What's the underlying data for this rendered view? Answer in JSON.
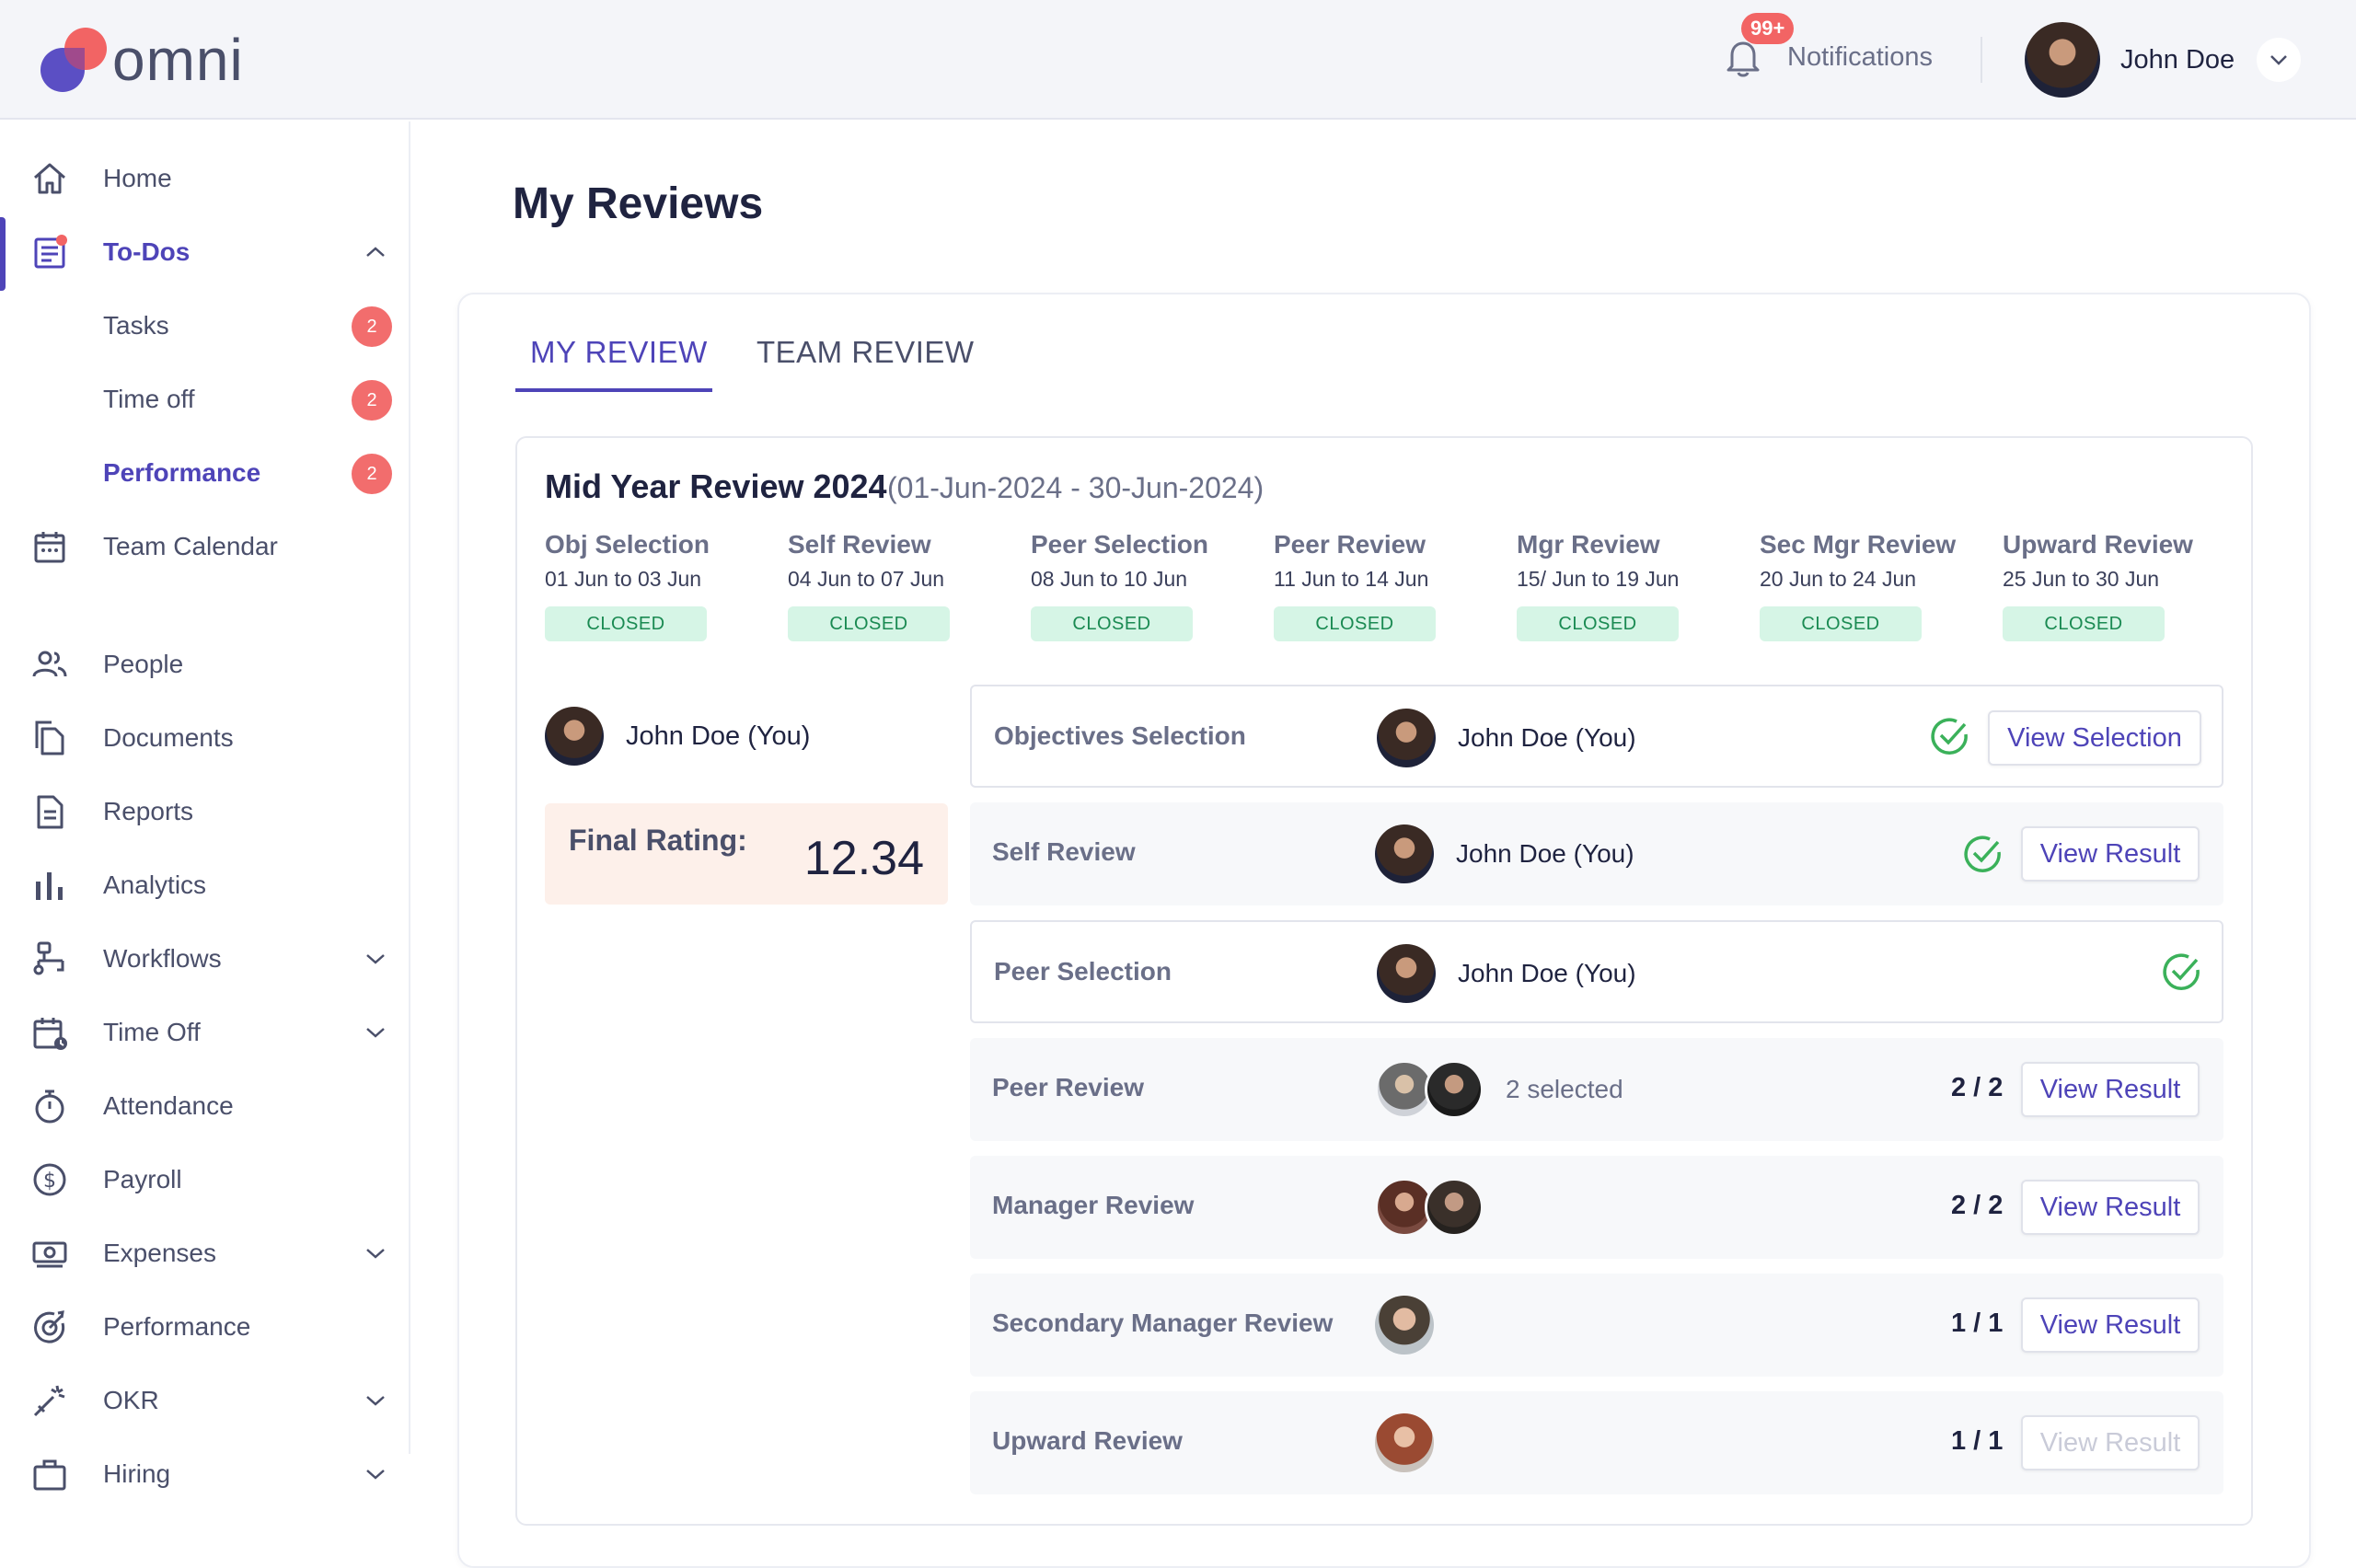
{
  "app": {
    "logo_text": "omni"
  },
  "header": {
    "notifications_badge": "99+",
    "notifications_label": "Notifications",
    "user_name": "John Doe"
  },
  "sidebar": {
    "items": [
      {
        "label": "Home",
        "icon": "home-icon"
      },
      {
        "label": "To-Dos",
        "icon": "todo-list-icon",
        "active": true
      },
      {
        "label": "Tasks",
        "count": "2"
      },
      {
        "label": "Time off",
        "count": "2"
      },
      {
        "label": "Performance",
        "count": "2",
        "active": true
      },
      {
        "label": "Team Calendar",
        "icon": "calendar-icon"
      },
      {
        "label": "People",
        "icon": "people-icon"
      },
      {
        "label": "Documents",
        "icon": "documents-icon"
      },
      {
        "label": "Reports",
        "icon": "report-icon"
      },
      {
        "label": "Analytics",
        "icon": "bar-chart-icon"
      },
      {
        "label": "Workflows",
        "icon": "workflow-icon"
      },
      {
        "label": "Time Off",
        "icon": "calendar-clock-icon"
      },
      {
        "label": "Attendance",
        "icon": "stopwatch-icon"
      },
      {
        "label": "Payroll",
        "icon": "dollar-icon"
      },
      {
        "label": "Expenses",
        "icon": "banknote-icon"
      },
      {
        "label": "Performance",
        "icon": "target-icon"
      },
      {
        "label": "OKR",
        "icon": "magic-wand-icon"
      },
      {
        "label": "Hiring",
        "icon": "briefcase-icon"
      }
    ]
  },
  "page": {
    "title": "My Reviews"
  },
  "tabs": {
    "my_review": "MY REVIEW",
    "team_review": "TEAM REVIEW"
  },
  "cycle": {
    "title": "Mid Year Review 2024",
    "range": "(01-Jun-2024 - 30-Jun-2024)",
    "phases": [
      {
        "name": "Obj Selection",
        "dates": "01 Jun  to  03 Jun",
        "status": "CLOSED"
      },
      {
        "name": "Self Review",
        "dates": "04 Jun  to  07 Jun",
        "status": "CLOSED"
      },
      {
        "name": "Peer Selection",
        "dates": "08 Jun  to  10 Jun",
        "status": "CLOSED"
      },
      {
        "name": "Peer Review",
        "dates": "11 Jun  to  14 Jun",
        "status": "CLOSED"
      },
      {
        "name": "Mgr Review",
        "dates": "15/ Jun  to  19 Jun",
        "status": "CLOSED"
      },
      {
        "name": "Sec Mgr Review",
        "dates": "20 Jun  to  24 Jun",
        "status": "CLOSED"
      },
      {
        "name": "Upward Review",
        "dates": "25 Jun  to  30 Jun",
        "status": "CLOSED"
      }
    ]
  },
  "me": {
    "name": "John Doe (You)",
    "final_rating_label": "Final Rating:",
    "final_rating_value": "12.34"
  },
  "rows": [
    {
      "label": "Objectives Selection",
      "person": "John Doe (You)",
      "button": "View Selection"
    },
    {
      "label": "Self Review",
      "person": "John Doe (You)",
      "button": "View Result"
    },
    {
      "label": "Peer Selection",
      "person": "John Doe (You)"
    },
    {
      "label": "Peer Review",
      "selected": "2 selected",
      "count": "2 / 2",
      "button": "View Result"
    },
    {
      "label": "Manager Review",
      "count": "2 / 2",
      "button": "View Result"
    },
    {
      "label": "Secondary Manager Review",
      "count": "1 / 1",
      "button": "View Result"
    },
    {
      "label": "Upward Review",
      "count": "1 / 1",
      "button": "View Result",
      "button_disabled": true
    }
  ],
  "colors": {
    "accent": "#4e44b8",
    "badge": "#f26d6d",
    "status_bg": "#d6f5e6",
    "status_text": "#1a8a52",
    "check": "#3bb15a",
    "rating_bg": "#fdf0ea"
  }
}
